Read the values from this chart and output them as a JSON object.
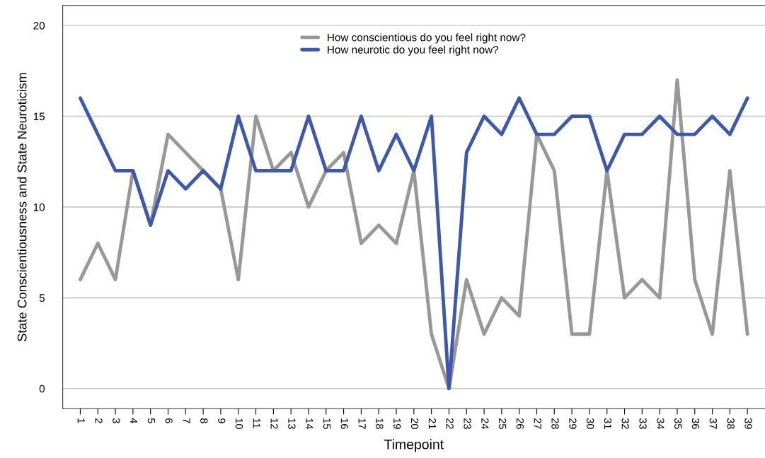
{
  "chart_data": {
    "type": "line",
    "xlabel": "Timepoint",
    "ylabel": "State Conscientiousness and State Neuroticism",
    "categories": [
      "1",
      "2",
      "3",
      "4",
      "5",
      "6",
      "7",
      "8",
      "9",
      "10",
      "11",
      "12",
      "13",
      "14",
      "15",
      "16",
      "17",
      "18",
      "19",
      "20",
      "21",
      "22",
      "23",
      "24",
      "25",
      "26",
      "27",
      "28",
      "29",
      "30",
      "31",
      "32",
      "33",
      "34",
      "35",
      "36",
      "37",
      "38",
      "39"
    ],
    "series": [
      {
        "name": "How conscientious do you feel right now?",
        "color": "#999797",
        "values": [
          6,
          8,
          6,
          12,
          9,
          14,
          13,
          12,
          11,
          6,
          15,
          12,
          13,
          10,
          12,
          13,
          8,
          9,
          8,
          12,
          3,
          0,
          6,
          3,
          5,
          4,
          14,
          12,
          3,
          3,
          12,
          5,
          6,
          5,
          17,
          6,
          3,
          12,
          3
        ]
      },
      {
        "name": "How neurotic do you feel right now?",
        "color": "#3e58ac",
        "values": [
          16,
          14,
          12,
          12,
          9,
          12,
          11,
          12,
          11,
          15,
          12,
          12,
          12,
          15,
          12,
          12,
          15,
          12,
          14,
          12,
          15,
          0,
          13,
          15,
          14,
          16,
          14,
          14,
          15,
          15,
          12,
          14,
          14,
          15,
          14,
          14,
          15,
          14,
          16
        ]
      }
    ],
    "ylim": [
      -1.1,
      21.1
    ],
    "yticks": [
      0,
      5,
      10,
      15,
      20
    ],
    "grid": "y",
    "legend": "top",
    "marker": "none",
    "line_style": "solid"
  }
}
